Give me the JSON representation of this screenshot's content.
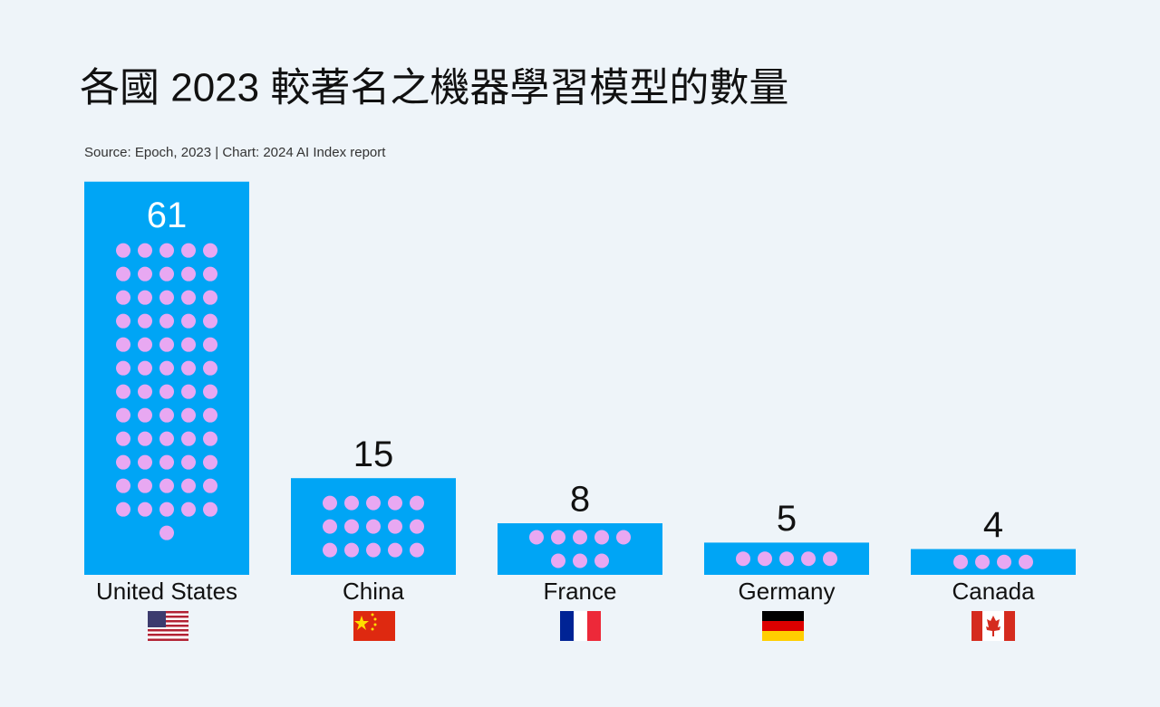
{
  "chart_data": {
    "type": "bar",
    "title": "各國 2023 較著名之機器學習模型的數量",
    "subtitle": "Source: Epoch, 2023 | Chart: 2024 AI Index report",
    "categories": [
      "United States",
      "China",
      "France",
      "Germany",
      "Canada"
    ],
    "values": [
      61,
      15,
      8,
      5,
      4
    ],
    "color": "#00a5f5",
    "dot_color": "#e8a8f2"
  }
}
